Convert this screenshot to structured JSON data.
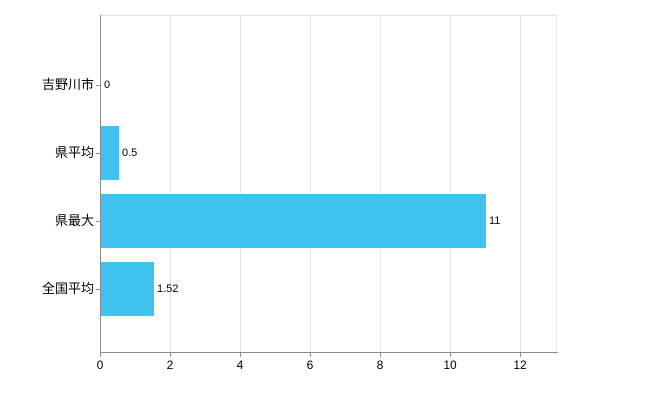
{
  "chart_data": {
    "type": "bar",
    "orientation": "horizontal",
    "categories": [
      "吉野川市",
      "県平均",
      "県最大",
      "全国平均"
    ],
    "values": [
      0,
      0.5,
      11,
      1.52
    ],
    "value_labels": [
      "0",
      "0.5",
      "11",
      "1.52"
    ],
    "x_ticks": [
      0,
      2,
      4,
      6,
      8,
      10,
      12
    ],
    "xlim": [
      0,
      13.05
    ],
    "title": "",
    "xlabel": "",
    "ylabel": "",
    "grid": true,
    "legend": false,
    "bar_color": "#3FC2F0",
    "grid_color": "#e3e3e3",
    "axis_color": "#8c8c8c",
    "text_color": "#000000"
  }
}
